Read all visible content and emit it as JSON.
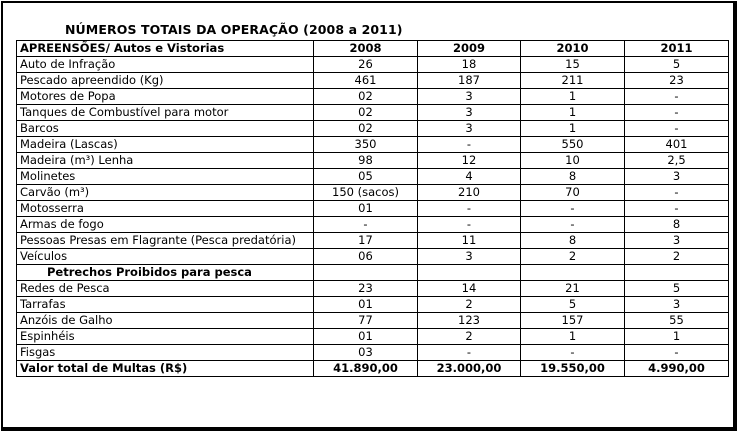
{
  "title": "NÚMEROS TOTAIS DA OPERAÇÃO (2008 a 2011)",
  "header": {
    "label": "APREENSÕES/ Autos e Vistorias",
    "years": [
      "2008",
      "2009",
      "2010",
      "2011"
    ]
  },
  "rows": [
    {
      "label": "Auto de Infração",
      "values": [
        "26",
        "18",
        "15",
        "5"
      ]
    },
    {
      "label": "Pescado apreendido (Kg)",
      "values": [
        "461",
        "187",
        "211",
        "23"
      ]
    },
    {
      "label": "Motores de Popa",
      "values": [
        "02",
        "3",
        "1",
        "-"
      ]
    },
    {
      "label": "Tanques de Combustível para motor",
      "values": [
        "02",
        "3",
        "1",
        "-"
      ]
    },
    {
      "label": "Barcos",
      "values": [
        "02",
        "3",
        "1",
        "-"
      ]
    },
    {
      "label": "Madeira (Lascas)",
      "values": [
        "350",
        "-",
        "550",
        "401"
      ]
    },
    {
      "label": "Madeira (m³) Lenha",
      "values": [
        "98",
        "12",
        "10",
        "2,5"
      ]
    },
    {
      "label": "Molinetes",
      "values": [
        "05",
        "4",
        "8",
        "3"
      ]
    },
    {
      "label": "Carvão (m³)",
      "values": [
        "150 (sacos)",
        "210",
        "70",
        "-"
      ]
    },
    {
      "label": "Motosserra",
      "values": [
        "01",
        "-",
        "-",
        "-"
      ]
    },
    {
      "label": "Armas de fogo",
      "values": [
        "-",
        "-",
        "-",
        "8"
      ]
    },
    {
      "label": "Pessoas Presas em Flagrante (Pesca predatória)",
      "values": [
        "17",
        "11",
        "8",
        "3"
      ]
    },
    {
      "label": "Veículos",
      "values": [
        "06",
        "3",
        "2",
        "2"
      ]
    }
  ],
  "section_label": "Petrechos Proibidos para pesca",
  "rows2": [
    {
      "label": "Redes de Pesca",
      "values": [
        "23",
        "14",
        "21",
        "5"
      ]
    },
    {
      "label": "Tarrafas",
      "values": [
        "01",
        "2",
        "5",
        "3"
      ]
    },
    {
      "label": "Anzóis de Galho",
      "values": [
        "77",
        "123",
        "157",
        "55"
      ]
    },
    {
      "label": "Espinhéis",
      "values": [
        "01",
        "2",
        "1",
        "1"
      ]
    },
    {
      "label": "Fisgas",
      "values": [
        "03",
        "-",
        "-",
        "-"
      ]
    }
  ],
  "total": {
    "label": "Valor total de Multas (R$)",
    "values": [
      "41.890,00",
      "23.000,00",
      "19.550,00",
      "4.990,00"
    ]
  }
}
